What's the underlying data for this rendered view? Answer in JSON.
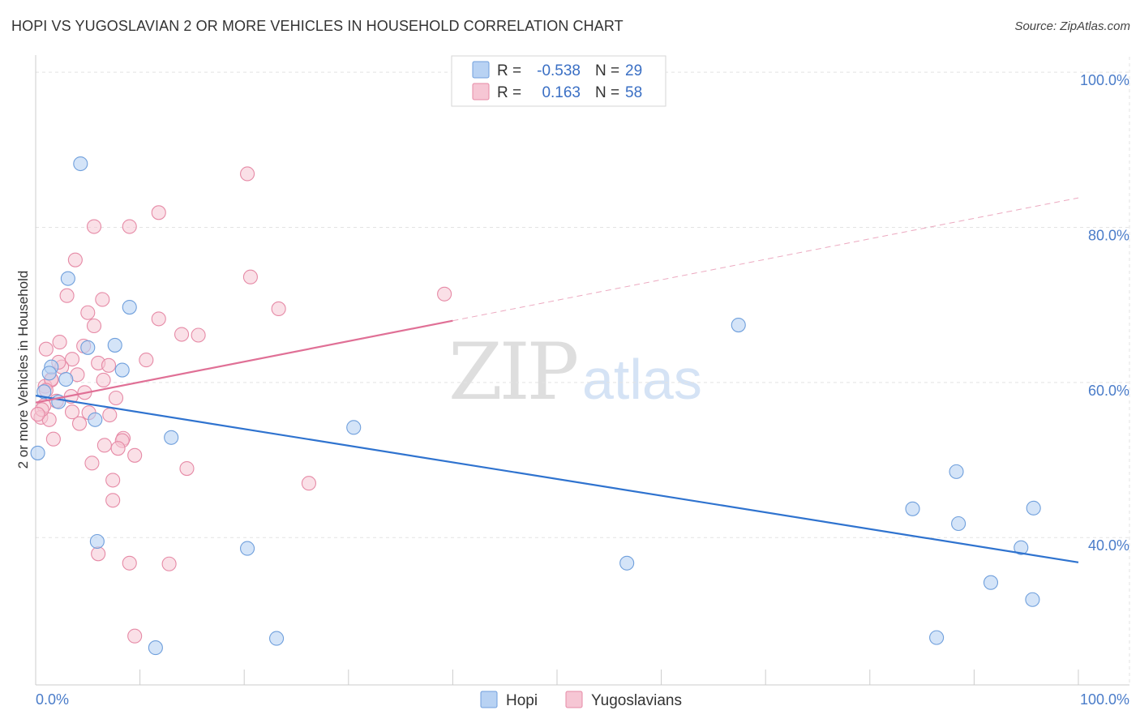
{
  "title": "HOPI VS YUGOSLAVIAN 2 OR MORE VEHICLES IN HOUSEHOLD CORRELATION CHART",
  "source": "Source: ZipAtlas.com",
  "watermark": {
    "zip": "ZIP",
    "atlas": "atlas"
  },
  "colors": {
    "hopi_fill": "#b8d2f3",
    "hopi_stroke": "#6f9fdc",
    "hopi_line": "#2f73cf",
    "yugo_fill": "#f6c6d4",
    "yugo_stroke": "#e68aa6",
    "yugo_line": "#e07096",
    "grid": "#e3e3e3",
    "axis_text": "#4a7cc9"
  },
  "legend": {
    "r_label": "R =",
    "n_label": "N =",
    "rows": [
      {
        "r": "-0.538",
        "n": "29"
      },
      {
        "r": "0.163",
        "n": "58"
      }
    ]
  },
  "chart_data": {
    "type": "scatter",
    "title": "HOPI VS YUGOSLAVIAN 2 OR MORE VEHICLES IN HOUSEHOLD CORRELATION CHART",
    "xlabel": "",
    "ylabel": "2 or more Vehicles in Household",
    "xlim": [
      0,
      100
    ],
    "ylim": [
      21,
      102
    ],
    "x_tick_labels": [
      "0.0%",
      "100.0%"
    ],
    "y_ticks": [
      {
        "value": 100,
        "label": "100.0%"
      },
      {
        "value": 80,
        "label": "80.0%"
      },
      {
        "value": 60,
        "label": "60.0%"
      },
      {
        "value": 40,
        "label": "40.0%"
      }
    ],
    "grid": true,
    "legend_position": "top-center",
    "series": [
      {
        "name": "Hopi",
        "r": -0.538,
        "n": 29,
        "trend": {
          "x": [
            0,
            100
          ],
          "y": [
            58.3,
            36.8
          ],
          "dashed_from": null
        },
        "points": [
          [
            4.3,
            88.2
          ],
          [
            3.1,
            73.4
          ],
          [
            9.0,
            69.7
          ],
          [
            7.6,
            64.8
          ],
          [
            5.0,
            64.5
          ],
          [
            1.5,
            62.0
          ],
          [
            8.3,
            61.6
          ],
          [
            1.3,
            61.2
          ],
          [
            2.9,
            60.4
          ],
          [
            0.8,
            58.8
          ],
          [
            2.2,
            57.5
          ],
          [
            5.7,
            55.2
          ],
          [
            13.0,
            52.9
          ],
          [
            0.2,
            50.9
          ],
          [
            30.5,
            54.2
          ],
          [
            5.9,
            39.5
          ],
          [
            20.3,
            38.6
          ],
          [
            67.4,
            67.4
          ],
          [
            56.7,
            36.7
          ],
          [
            23.1,
            27.0
          ],
          [
            11.5,
            25.8
          ],
          [
            88.3,
            48.5
          ],
          [
            84.1,
            43.7
          ],
          [
            88.5,
            41.8
          ],
          [
            95.7,
            43.8
          ],
          [
            94.5,
            38.7
          ],
          [
            91.6,
            34.2
          ],
          [
            95.6,
            32.0
          ],
          [
            86.4,
            27.1
          ]
        ]
      },
      {
        "name": "Yugoslavians",
        "r": 0.163,
        "n": 58,
        "trend": {
          "x": [
            0,
            100
          ],
          "y": [
            57.4,
            83.8
          ],
          "dashed_from": 40
        },
        "points": [
          [
            20.3,
            86.9
          ],
          [
            11.8,
            81.9
          ],
          [
            5.6,
            80.1
          ],
          [
            9.0,
            80.1
          ],
          [
            3.8,
            75.8
          ],
          [
            20.6,
            73.6
          ],
          [
            3.0,
            71.2
          ],
          [
            6.4,
            70.7
          ],
          [
            39.2,
            71.4
          ],
          [
            23.3,
            69.5
          ],
          [
            5.0,
            69.0
          ],
          [
            11.8,
            68.2
          ],
          [
            5.6,
            67.3
          ],
          [
            14.0,
            66.2
          ],
          [
            15.6,
            66.1
          ],
          [
            2.3,
            65.2
          ],
          [
            4.6,
            64.7
          ],
          [
            1.0,
            64.3
          ],
          [
            3.5,
            63.0
          ],
          [
            10.6,
            62.9
          ],
          [
            6.0,
            62.5
          ],
          [
            7.0,
            62.2
          ],
          [
            2.5,
            62.0
          ],
          [
            4.0,
            61.0
          ],
          [
            1.5,
            60.3
          ],
          [
            6.5,
            60.3
          ],
          [
            0.9,
            59.5
          ],
          [
            4.7,
            58.7
          ],
          [
            3.4,
            58.2
          ],
          [
            7.7,
            58.0
          ],
          [
            2.0,
            57.6
          ],
          [
            0.8,
            57.0
          ],
          [
            3.5,
            56.2
          ],
          [
            5.1,
            56.1
          ],
          [
            7.1,
            55.8
          ],
          [
            0.5,
            55.5
          ],
          [
            1.3,
            55.2
          ],
          [
            4.2,
            54.7
          ],
          [
            1.7,
            52.7
          ],
          [
            8.4,
            52.8
          ],
          [
            8.3,
            52.5
          ],
          [
            6.6,
            51.9
          ],
          [
            7.9,
            51.5
          ],
          [
            9.5,
            50.6
          ],
          [
            5.4,
            49.6
          ],
          [
            14.5,
            48.9
          ],
          [
            7.4,
            47.4
          ],
          [
            26.2,
            47.0
          ],
          [
            7.4,
            44.8
          ],
          [
            6.0,
            37.9
          ],
          [
            9.0,
            36.7
          ],
          [
            12.8,
            36.6
          ],
          [
            9.5,
            27.3
          ],
          [
            1.5,
            60.4
          ],
          [
            2.2,
            62.6
          ],
          [
            0.6,
            56.5
          ],
          [
            0.2,
            55.9
          ],
          [
            1.0,
            59.0
          ]
        ]
      }
    ]
  },
  "bottom_legend": [
    "Hopi",
    "Yugoslavians"
  ]
}
